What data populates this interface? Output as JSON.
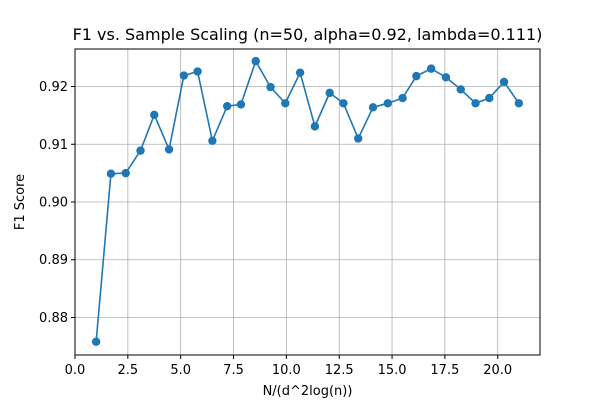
{
  "chart_data": {
    "type": "line",
    "title": "F1 vs. Sample Scaling (n=50, alpha=0.92, lambda=0.111)",
    "xlabel": "N/(d^2log(n))",
    "ylabel": "F1 Score",
    "xlim": [
      0.0,
      22.0
    ],
    "ylim": [
      0.8735,
      0.9265
    ],
    "grid": true,
    "x_ticks": [
      0.0,
      2.5,
      5.0,
      7.5,
      10.0,
      12.5,
      15.0,
      17.5,
      20.0
    ],
    "x_tick_labels": [
      "0.0",
      "2.5",
      "5.0",
      "7.5",
      "10.0",
      "12.5",
      "15.0",
      "17.5",
      "20.0"
    ],
    "y_ticks": [
      0.88,
      0.89,
      0.9,
      0.91,
      0.92
    ],
    "y_tick_labels": [
      "0.88",
      "0.89",
      "0.90",
      "0.91",
      "0.92"
    ],
    "series": [
      {
        "color": "#1f77b4",
        "marker": "circle",
        "x": [
          1.0,
          1.7,
          2.4,
          3.1,
          3.75,
          4.45,
          5.15,
          5.8,
          6.5,
          7.2,
          7.85,
          8.55,
          9.25,
          9.95,
          10.65,
          11.35,
          12.05,
          12.7,
          13.4,
          14.1,
          14.8,
          15.5,
          16.15,
          16.85,
          17.55,
          18.25,
          18.95,
          19.6,
          20.3,
          21.0
        ],
        "y": [
          0.8758,
          0.9049,
          0.905,
          0.9089,
          0.9151,
          0.9091,
          0.9219,
          0.9226,
          0.9106,
          0.9166,
          0.9169,
          0.9244,
          0.9199,
          0.9171,
          0.9224,
          0.9131,
          0.9189,
          0.9171,
          0.911,
          0.9164,
          0.9171,
          0.918,
          0.9218,
          0.9231,
          0.9216,
          0.9195,
          0.9171,
          0.918,
          0.9208,
          0.9171
        ]
      }
    ]
  }
}
